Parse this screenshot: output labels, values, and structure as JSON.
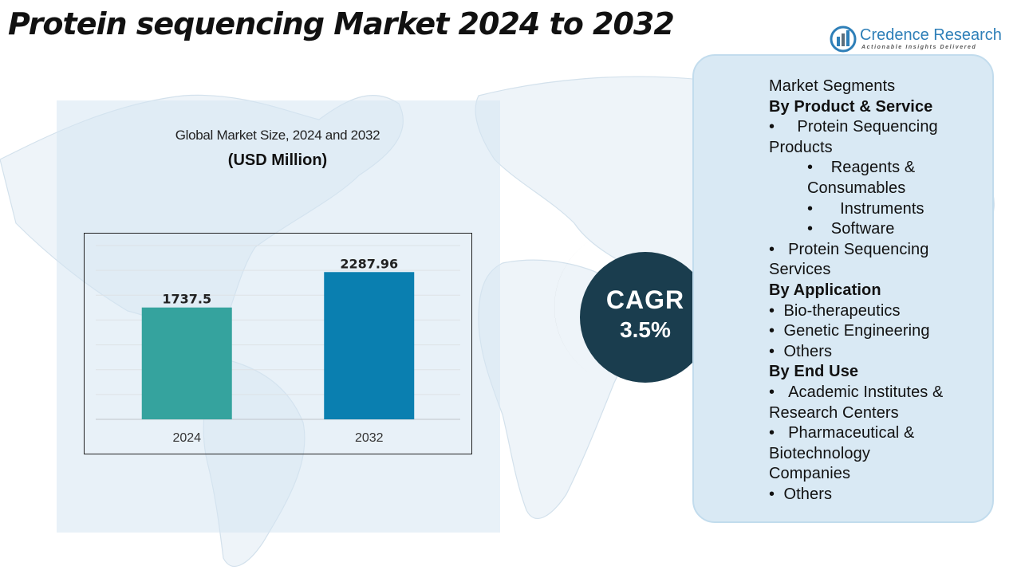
{
  "page": {
    "title": "Protein sequencing Market 2024 to 2032"
  },
  "logo": {
    "name": "Credence Research",
    "tagline": "Actionable Insights Delivered",
    "brand_color": "#2e7fb8"
  },
  "chart_header": {
    "title": "Global Market Size, 2024 and 2032",
    "subtitle": "(USD Million)"
  },
  "chart_data": {
    "type": "bar",
    "title": "Global Market Size, 2024 and 2032",
    "subtitle": "(USD Million)",
    "categories": [
      "2024",
      "2032"
    ],
    "values": [
      1737.5,
      2287.96
    ],
    "value_labels": [
      "1737.5",
      "2287.96"
    ],
    "bar_colors": [
      "#35a39e",
      "#0a7fb0"
    ],
    "ylim": [
      0,
      2700
    ],
    "grid": true,
    "legend": "none"
  },
  "cagr": {
    "label": "CAGR",
    "value": "3.5%",
    "color": "#1a3d4e"
  },
  "segments": {
    "heading": "Market Segments",
    "by_product_heading": "By Product & Service",
    "product_item_1_line_1": "Protein Sequencing",
    "product_item_1_line_2": "Products",
    "reagents_line_1": "Reagents &",
    "reagents_line_2": "Consumables",
    "instruments": "Instruments",
    "software": "Software",
    "product_item_2_line_1": "Protein Sequencing",
    "product_item_2_line_2": "Services",
    "by_application_heading": "By Application",
    "application_1": "Bio-therapeutics",
    "application_2": "Genetic Engineering",
    "application_3": "Others",
    "by_end_use_heading": "By End Use",
    "end_use_1_line_1": "Academic Institutes &",
    "end_use_1_line_2": "Research Centers",
    "end_use_2_line_1": "Pharmaceutical &",
    "end_use_2_line_2": "Biotechnology",
    "end_use_2_line_3": "Companies",
    "end_use_3": "Others",
    "bullet": "•"
  }
}
